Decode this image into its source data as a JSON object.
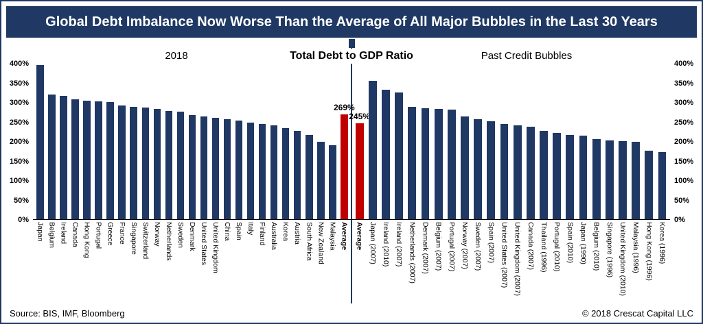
{
  "header": {
    "title": "Global Debt Imbalance Now Worse Than the Average of All Major Bubbles in the Last 30 Years"
  },
  "center_title": "Total Debt to GDP Ratio",
  "footer": {
    "source": "Source: BIS, IMF, Bloomberg",
    "copyright": "© 2018 Crescat Capital LLC"
  },
  "colors": {
    "navy": "#1F3864",
    "bar": "#1F3864",
    "highlight": "#C00000",
    "axis_line": "#000000"
  },
  "chart_data": [
    {
      "type": "bar",
      "title": "2018",
      "y_axis_side": "left",
      "ylim": [
        0,
        400
      ],
      "yticks": [
        400,
        350,
        300,
        250,
        200,
        150,
        100,
        50,
        0
      ],
      "ytick_suffix": "%",
      "grid": false,
      "categories": [
        "Japan",
        "Belgium",
        "Ireland",
        "Canada",
        "Hong Kong",
        "Portugal",
        "Greece",
        "France",
        "Singapore",
        "Switzerland",
        "Norway",
        "Netherlands",
        "Sweden",
        "Denmark",
        "United States",
        "United Kingdom",
        "China",
        "Spain",
        "Italy",
        "Finland",
        "Australia",
        "Korea",
        "Austria",
        "South Africa",
        "New Zealand",
        "Malaysia",
        "Average"
      ],
      "values": [
        395,
        320,
        315,
        307,
        303,
        302,
        300,
        292,
        288,
        286,
        282,
        278,
        275,
        267,
        263,
        260,
        257,
        253,
        247,
        244,
        241,
        234,
        226,
        216,
        199,
        189,
        269
      ],
      "highlight_index": 26,
      "annotation": "269%"
    },
    {
      "type": "bar",
      "title": "Past Credit Bubbles",
      "y_axis_side": "right",
      "ylim": [
        0,
        400
      ],
      "yticks": [
        400,
        350,
        300,
        250,
        200,
        150,
        100,
        50,
        0
      ],
      "ytick_suffix": "%",
      "grid": false,
      "categories": [
        "Average",
        "Japan (2007)",
        "Ireland (2010)",
        "Ireland (2007)",
        "Netherlands (2007)",
        "Denmark (2007)",
        "Belgium (2007)",
        "Portugal (2007)",
        "Norway (2007)",
        "Sweden (2007)",
        "Spain (2007)",
        "United States (2007)",
        "United Kingdom (2007)",
        "Canada (2007)",
        "Thailand (1996)",
        "Portugal (2010)",
        "Spain (2010)",
        "Japan (1990)",
        "Belgium (2010)",
        "Singapore (1996)",
        "United Kingdom (2010)",
        "Malaysia (1996)",
        "Hong Kong (1996)",
        "Korea (1996)"
      ],
      "values": [
        245,
        355,
        332,
        325,
        287,
        284,
        282,
        280,
        264,
        256,
        250,
        243,
        240,
        236,
        226,
        221,
        216,
        214,
        206,
        202,
        200,
        198,
        176,
        172
      ],
      "highlight_index": 0,
      "annotation": "245%"
    }
  ]
}
